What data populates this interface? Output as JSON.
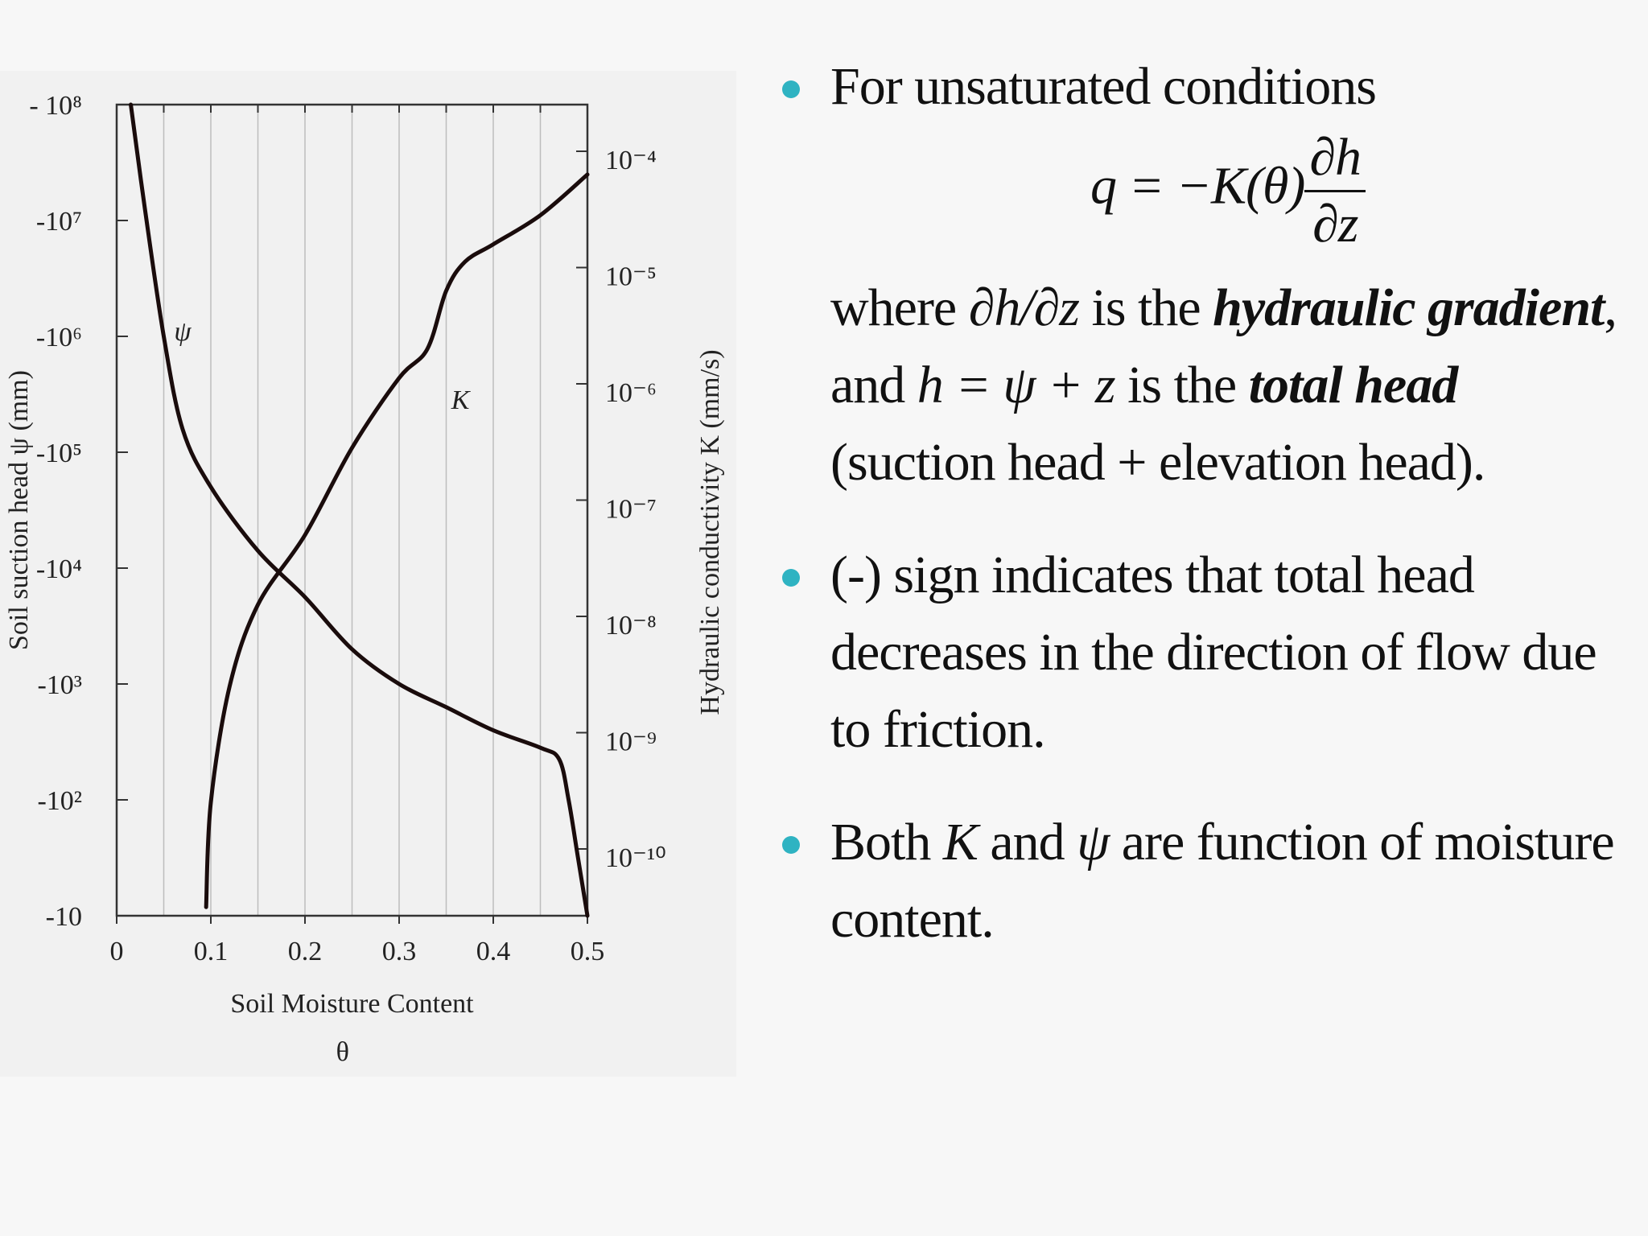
{
  "chart_data": {
    "type": "line",
    "xlabel": "Soil Moisture Content",
    "xlabel_symbol": "θ",
    "ylabel_left": "Soil suction head ψ (mm)",
    "ylabel_right": "Hydraulic conductivity K (mm/s)",
    "x_ticks": [
      "0",
      "0.1",
      "0.2",
      "0.3",
      "0.4",
      "0.5"
    ],
    "x_range": [
      0,
      0.5
    ],
    "y_left_ticks": [
      "- 10⁸",
      "-10⁷",
      "-10⁶",
      "-10⁵",
      "-10⁴",
      "-10³",
      "-10²",
      "-10"
    ],
    "y_left_range_log10_magnitude": [
      8,
      1
    ],
    "y_right_ticks": [
      "10⁻⁴",
      "10⁻⁵",
      "10⁻⁶",
      "10⁻⁷",
      "10⁻⁸",
      "10⁻⁹",
      "10⁻¹⁰"
    ],
    "y_right_range_log10": [
      -10,
      -4
    ],
    "grid": "vertical lines",
    "series": [
      {
        "name": "ψ",
        "axis": "left",
        "x": [
          0.015,
          0.03,
          0.05,
          0.07,
          0.1,
          0.15,
          0.2,
          0.25,
          0.3,
          0.35,
          0.4,
          0.45,
          0.47,
          0.48,
          0.49,
          0.5
        ],
        "log10_abs_y": [
          8.0,
          7.1,
          6.0,
          5.2,
          4.7,
          4.15,
          3.75,
          3.3,
          3.0,
          2.8,
          2.6,
          2.45,
          2.35,
          2.0,
          1.5,
          1.0
        ]
      },
      {
        "name": "K",
        "axis": "right",
        "x": [
          0.095,
          0.1,
          0.12,
          0.15,
          0.2,
          0.25,
          0.3,
          0.33,
          0.35,
          0.37,
          0.4,
          0.45,
          0.5
        ],
        "log10_y": [
          -10.5,
          -9.6,
          -8.6,
          -7.9,
          -7.3,
          -6.55,
          -5.95,
          -5.7,
          -5.2,
          -4.95,
          -4.8,
          -4.55,
          -4.2
        ]
      }
    ]
  },
  "text": {
    "b1_line": "For unsaturated conditions",
    "f_lhs": "q = −K(θ)",
    "f_num": "∂h",
    "f_den": "∂z",
    "b1_where": "where ",
    "b1_dhdz": "∂h/∂z",
    "b1_isthe": " is the ",
    "b1_hydraulic": "hydraulic gradient",
    "b1_and": ", and ",
    "b1_heq": "h = ψ + z",
    "b1_isthe2": " is the ",
    "b1_totalhead": "total head",
    "b1_paren": " (suction head + elevation head).",
    "b2": "(-) sign indicates that total head decreases in the direction of flow due to friction.",
    "b3_a": "Both ",
    "b3_k": "K",
    "b3_and": " and ",
    "b3_psi": "ψ",
    "b3_b": " are function of moisture content."
  }
}
